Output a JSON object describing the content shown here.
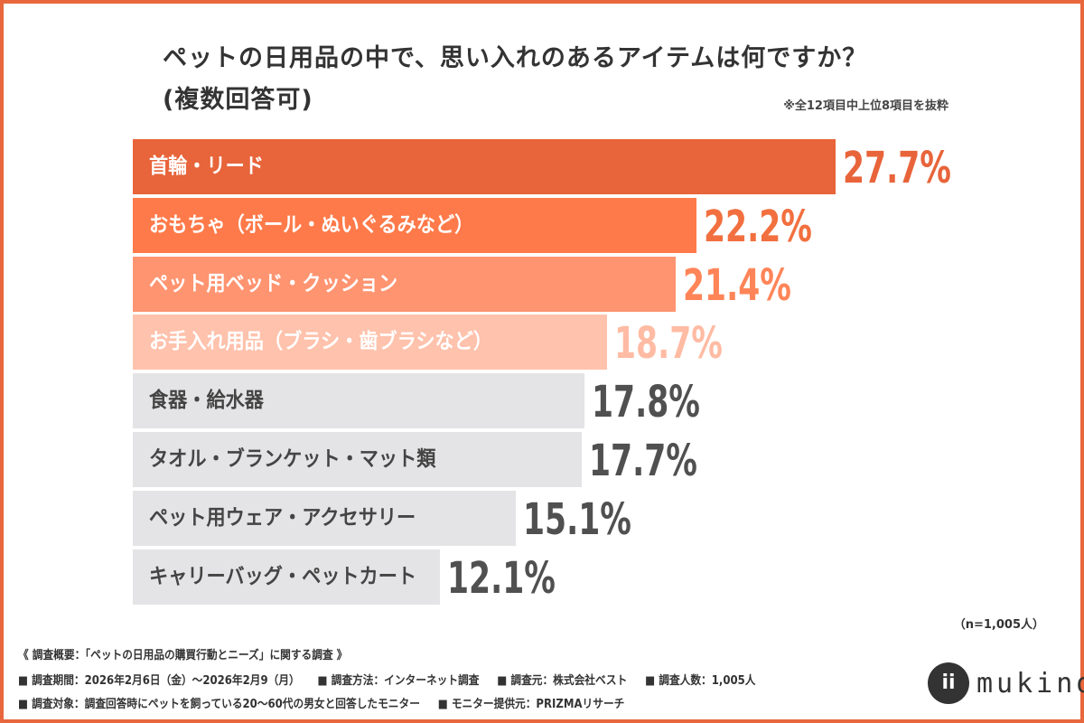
{
  "header": {
    "title_line1": "ペットの日用品の中で、思い入れのあるアイテムは何ですか？",
    "title_line2": "(複数回答可)",
    "note": "※全12項目中上位8項目を抜粋"
  },
  "chart_data": {
    "type": "bar",
    "orientation": "horizontal",
    "categories": [
      "首輪・リード",
      "おもちゃ（ボール・ぬいぐるみなど）",
      "ペット用ベッド・クッション",
      "お手入れ用品（ブラシ・歯ブラシなど）",
      "食器・給水器",
      "タオル・ブランケット・マット類",
      "ペット用ウェア・アクセサリー",
      "キャリーバッグ・ペットカート"
    ],
    "values": [
      27.7,
      22.2,
      21.4,
      18.7,
      17.8,
      17.7,
      15.1,
      12.1
    ],
    "value_labels": [
      "27.7%",
      "22.2%",
      "21.4%",
      "18.7%",
      "17.8%",
      "17.7%",
      "15.1%",
      "12.1%"
    ],
    "bar_colors": [
      "#E8643A",
      "#FF7A4A",
      "#FF9470",
      "#FFC2AC",
      "#E4E3E5",
      "#E4E3E5",
      "#E4E3E5",
      "#E4E3E5"
    ],
    "value_colors": [
      "#E8643A",
      "#F2703F",
      "#FF8559",
      "#FFBBA3",
      "#505050",
      "#505050",
      "#505050",
      "#505050"
    ],
    "label_colors": [
      "#ffffff",
      "#ffffff",
      "#ffffff",
      "#ffffff",
      "#444444",
      "#444444",
      "#444444",
      "#444444"
    ],
    "grid": false
  },
  "sample": "（n=1,005人）",
  "footer": {
    "heading": "《 調査概要：「ペットの日用品の購買行動とニーズ」に関する調査 》",
    "line2": [
      "■ 調査期間：2026年2月6日（金）〜2026年2月9（月）",
      "■ 調査方法：インターネット調査",
      "■ 調査元：株式会社ベスト",
      "■ 調査人数：1,005人"
    ],
    "line3": [
      "■ 調査対象：調査回答時にペットを飼っている20〜60代の男女と回答したモニター",
      "■ モニター提供元：PRIZMAリサーチ"
    ]
  },
  "logo": {
    "text": "mukino",
    "mark": "ii"
  }
}
